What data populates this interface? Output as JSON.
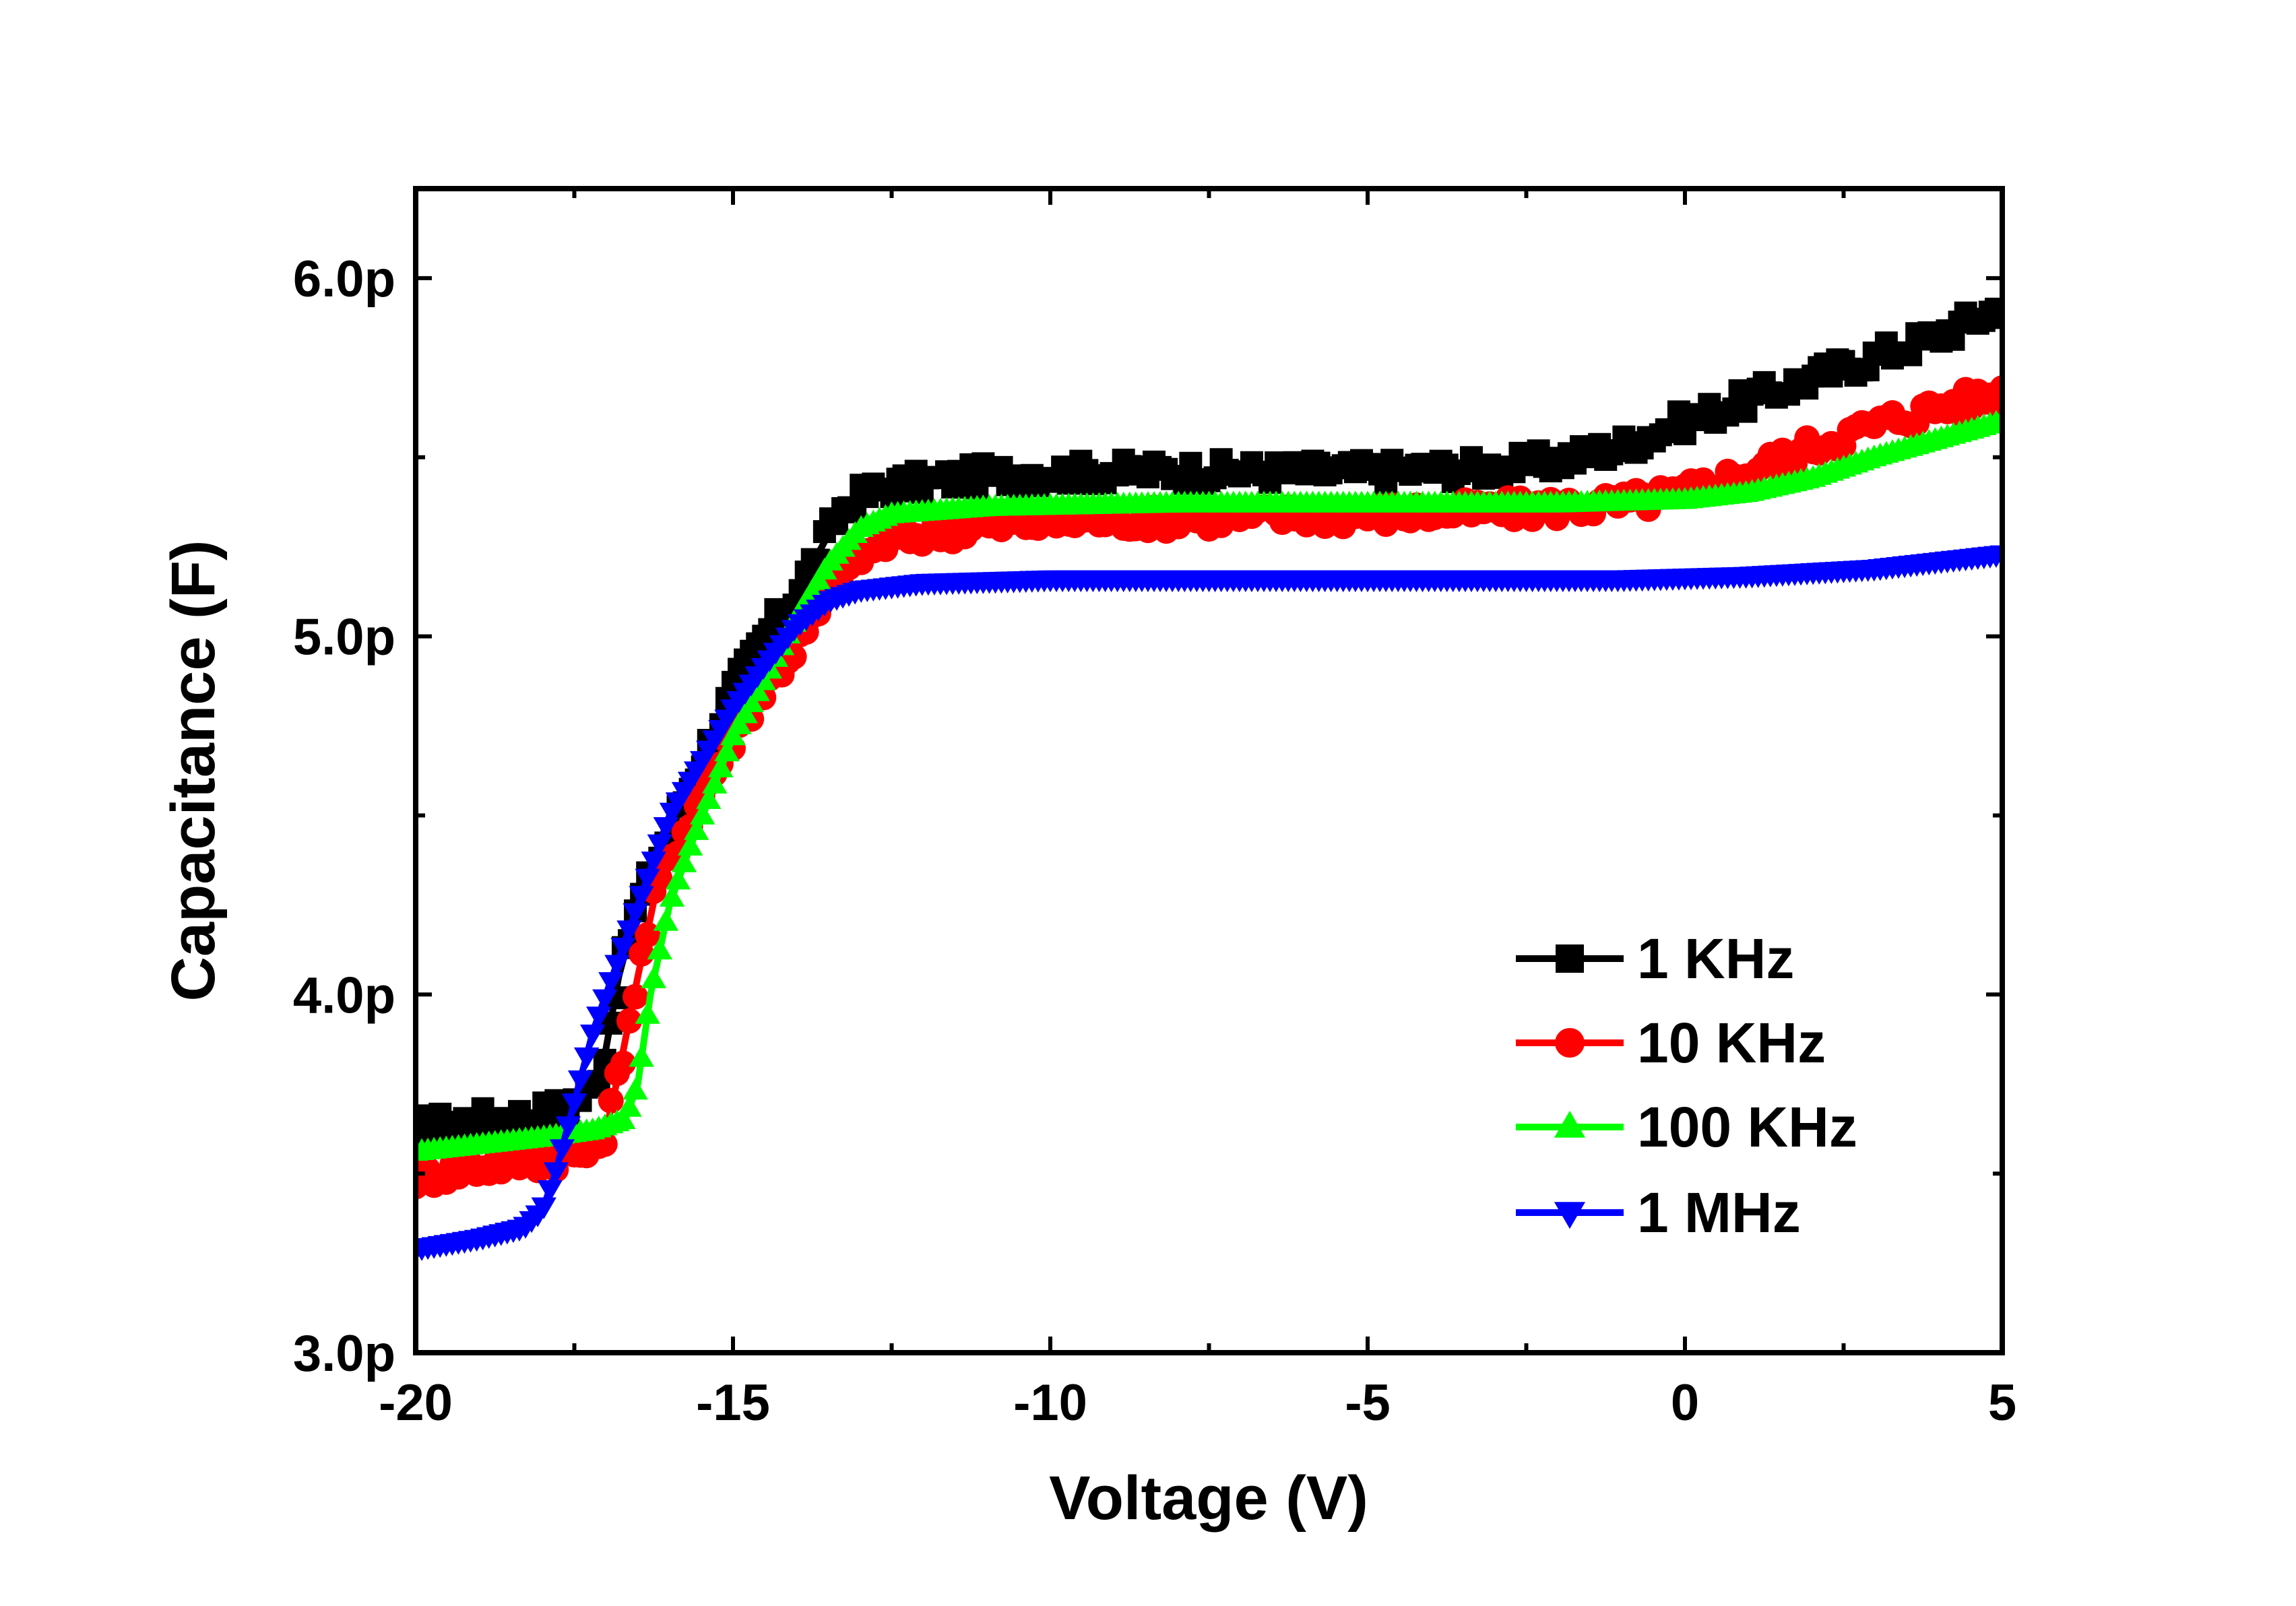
{
  "chart_data": {
    "type": "scatter",
    "xlabel": "Voltage (V)",
    "ylabel": "Capacitance (F)",
    "xlim": [
      -20,
      5
    ],
    "ylim": [
      3.0,
      6.25
    ],
    "x_ticks": [
      {
        "value": -20,
        "label": "-20"
      },
      {
        "value": -15,
        "label": "-15"
      },
      {
        "value": -10,
        "label": "-10"
      },
      {
        "value": -5,
        "label": "-5"
      },
      {
        "value": 0,
        "label": "0"
      },
      {
        "value": 5,
        "label": "5"
      }
    ],
    "y_ticks": [
      {
        "value": 3.0,
        "label": "3.0p"
      },
      {
        "value": 4.0,
        "label": "4.0p"
      },
      {
        "value": 5.0,
        "label": "5.0p"
      },
      {
        "value": 6.0,
        "label": "6.0p"
      }
    ],
    "y_minor_ticks": [
      3.5,
      4.5,
      5.5
    ],
    "x_minor_ticks": [
      -17.5,
      -12.5,
      -7.5,
      -2.5,
      2.5
    ],
    "grid": false,
    "legend_position": "lower-right",
    "series": [
      {
        "name": "1 KHz",
        "color": "#000000",
        "marker": "square",
        "noise": 0.035,
        "points": [
          [
            -20,
            3.63
          ],
          [
            -19,
            3.65
          ],
          [
            -18.2,
            3.66
          ],
          [
            -17.6,
            3.69
          ],
          [
            -17.2,
            3.74
          ],
          [
            -17.0,
            3.85
          ],
          [
            -16.8,
            4.05
          ],
          [
            -16.5,
            4.25
          ],
          [
            -16.0,
            4.45
          ],
          [
            -15.5,
            4.65
          ],
          [
            -15,
            4.85
          ],
          [
            -14.5,
            5.0
          ],
          [
            -14,
            5.12
          ],
          [
            -13.6,
            5.25
          ],
          [
            -13.3,
            5.35
          ],
          [
            -13,
            5.39
          ],
          [
            -12.5,
            5.42
          ],
          [
            -11,
            5.45
          ],
          [
            -9,
            5.46
          ],
          [
            -7,
            5.46
          ],
          [
            -5,
            5.46
          ],
          [
            -3,
            5.47
          ],
          [
            -2,
            5.49
          ],
          [
            -1,
            5.53
          ],
          [
            0,
            5.6
          ],
          [
            1,
            5.66
          ],
          [
            2,
            5.72
          ],
          [
            3,
            5.78
          ],
          [
            4,
            5.84
          ],
          [
            5,
            5.92
          ]
        ]
      },
      {
        "name": "10 KHz",
        "color": "#ff0000",
        "marker": "circle",
        "noise": 0.035,
        "points": [
          [
            -20,
            3.49
          ],
          [
            -19,
            3.52
          ],
          [
            -18,
            3.54
          ],
          [
            -17.2,
            3.56
          ],
          [
            -17.0,
            3.62
          ],
          [
            -16.8,
            3.78
          ],
          [
            -16.5,
            4.05
          ],
          [
            -16.2,
            4.3
          ],
          [
            -15.8,
            4.45
          ],
          [
            -15.3,
            4.62
          ],
          [
            -14.8,
            4.78
          ],
          [
            -14.3,
            4.9
          ],
          [
            -13.8,
            5.02
          ],
          [
            -13.4,
            5.14
          ],
          [
            -13,
            5.22
          ],
          [
            -12.5,
            5.27
          ],
          [
            -11.5,
            5.3
          ],
          [
            -10,
            5.32
          ],
          [
            -8,
            5.33
          ],
          [
            -5,
            5.34
          ],
          [
            -3,
            5.35
          ],
          [
            -1,
            5.37
          ],
          [
            0,
            5.4
          ],
          [
            1,
            5.46
          ],
          [
            2,
            5.53
          ],
          [
            3,
            5.59
          ],
          [
            4,
            5.64
          ],
          [
            5,
            5.68
          ]
        ]
      },
      {
        "name": "100 KHz",
        "color": "#00ff00",
        "marker": "triangle-up",
        "noise": 0.0,
        "points": [
          [
            -20,
            3.56
          ],
          [
            -19,
            3.58
          ],
          [
            -18,
            3.6
          ],
          [
            -17.2,
            3.62
          ],
          [
            -16.7,
            3.65
          ],
          [
            -16.5,
            3.75
          ],
          [
            -16.3,
            4.0
          ],
          [
            -16.0,
            4.25
          ],
          [
            -15.7,
            4.4
          ],
          [
            -15.3,
            4.58
          ],
          [
            -15,
            4.72
          ],
          [
            -14.5,
            4.88
          ],
          [
            -14,
            5.05
          ],
          [
            -13.5,
            5.2
          ],
          [
            -13,
            5.3
          ],
          [
            -12.5,
            5.34
          ],
          [
            -11,
            5.36
          ],
          [
            -8,
            5.37
          ],
          [
            -5,
            5.37
          ],
          [
            -2,
            5.37
          ],
          [
            0,
            5.38
          ],
          [
            1,
            5.4
          ],
          [
            2,
            5.44
          ],
          [
            3,
            5.5
          ],
          [
            4,
            5.55
          ],
          [
            5,
            5.6
          ]
        ]
      },
      {
        "name": "1 MHz",
        "color": "#0000ff",
        "marker": "triangle-down",
        "noise": 0.0,
        "points": [
          [
            -20,
            3.29
          ],
          [
            -19,
            3.32
          ],
          [
            -18.3,
            3.35
          ],
          [
            -18.0,
            3.4
          ],
          [
            -17.8,
            3.5
          ],
          [
            -17.5,
            3.7
          ],
          [
            -17.2,
            3.9
          ],
          [
            -16.8,
            4.1
          ],
          [
            -16.4,
            4.3
          ],
          [
            -16.0,
            4.5
          ],
          [
            -15.5,
            4.65
          ],
          [
            -15,
            4.8
          ],
          [
            -14.5,
            4.92
          ],
          [
            -14,
            5.03
          ],
          [
            -13.5,
            5.1
          ],
          [
            -13,
            5.13
          ],
          [
            -12,
            5.15
          ],
          [
            -10,
            5.16
          ],
          [
            -5,
            5.16
          ],
          [
            -1,
            5.16
          ],
          [
            1,
            5.17
          ],
          [
            2,
            5.18
          ],
          [
            3,
            5.19
          ],
          [
            4,
            5.21
          ],
          [
            5,
            5.23
          ]
        ]
      }
    ]
  }
}
